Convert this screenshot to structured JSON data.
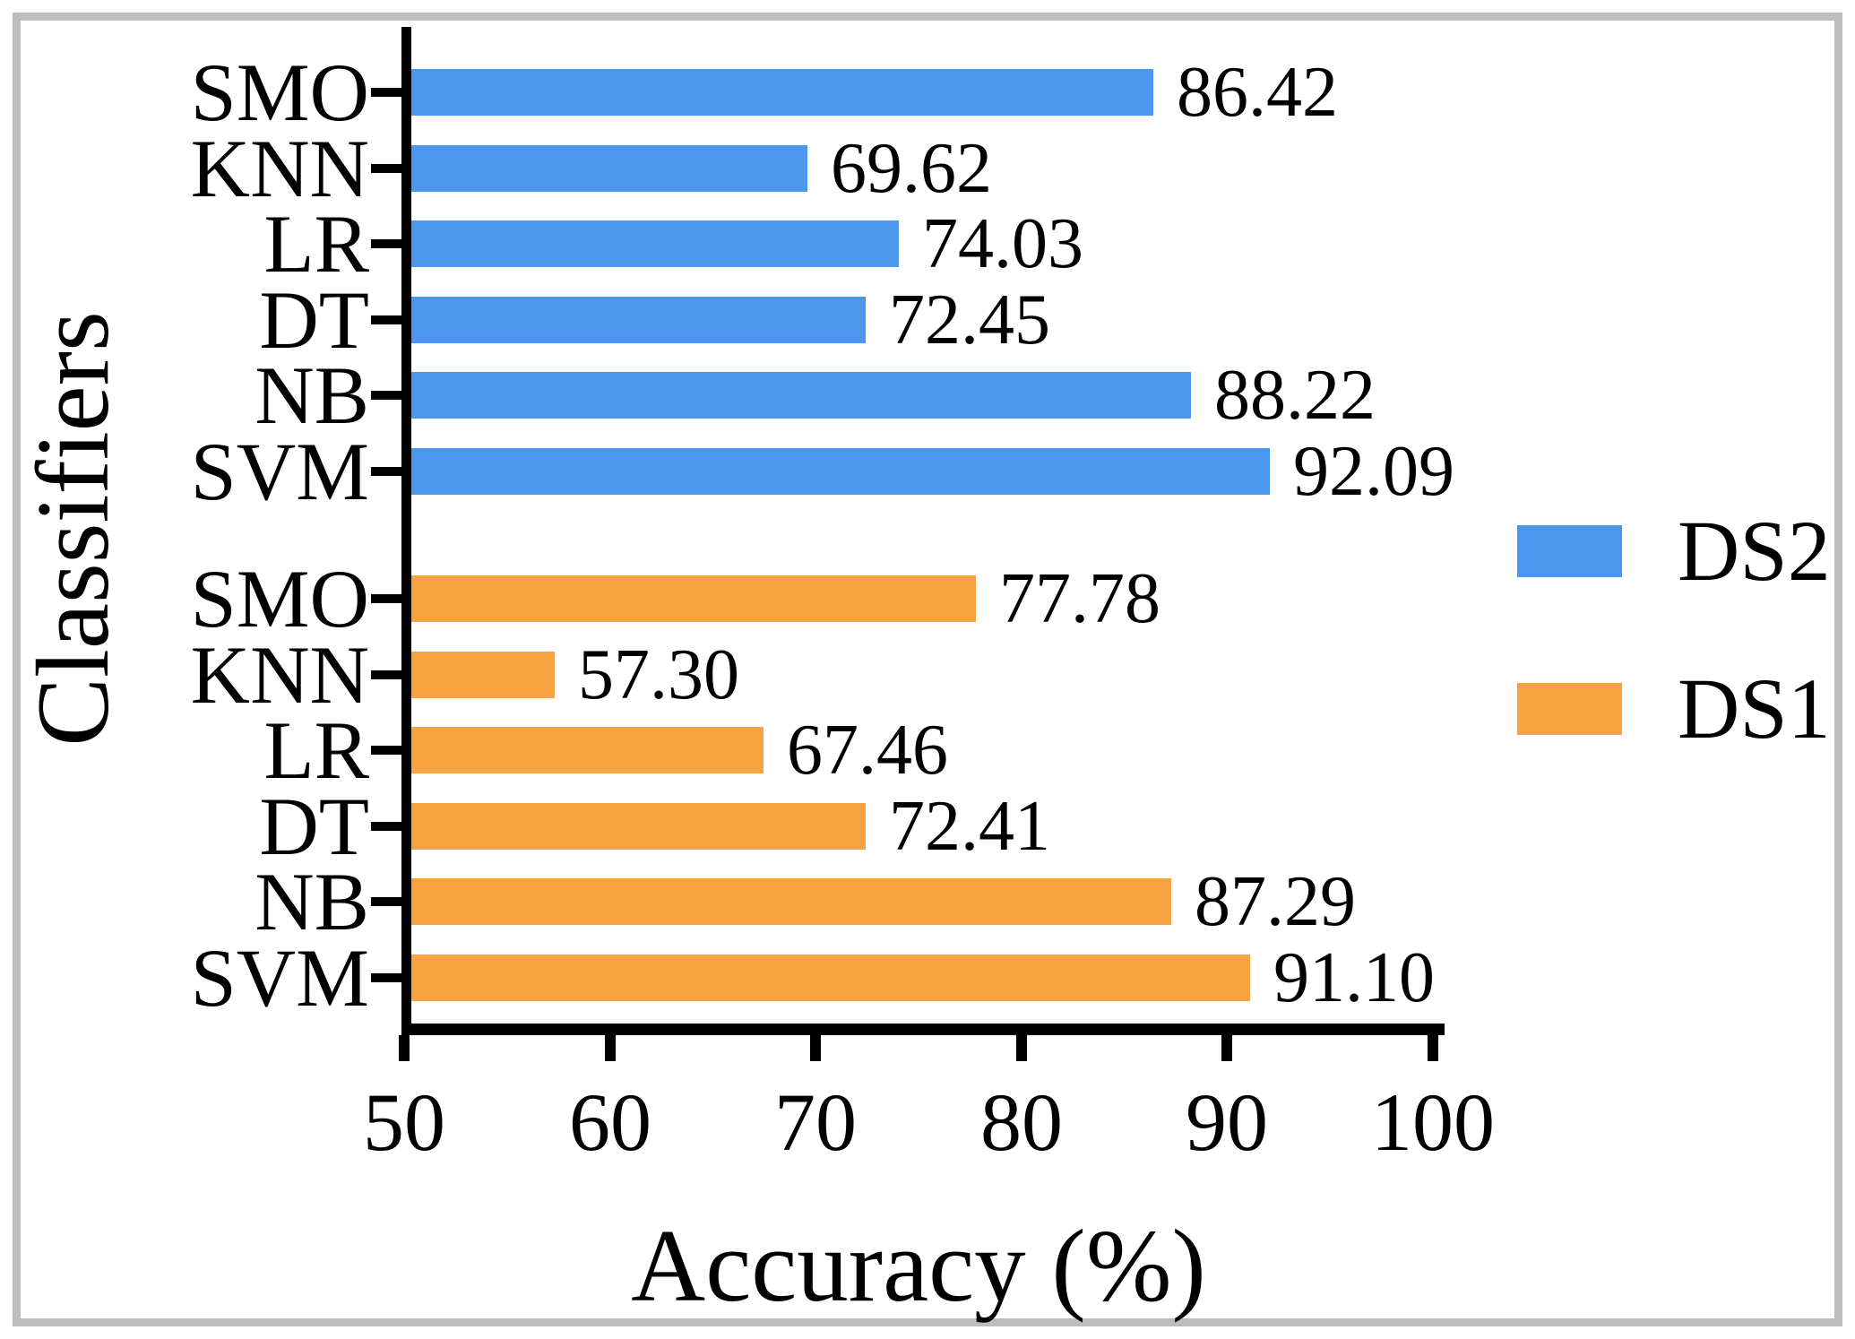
{
  "figure": {
    "background": "#ffffff",
    "frame_color": "#bdbdbd",
    "axis_color": "#000000",
    "text_color": "#000000"
  },
  "chart_data": {
    "type": "bar",
    "orientation": "horizontal",
    "title": "",
    "xlabel": "Accuracy (%)",
    "ylabel": "Classifiers",
    "xlim": [
      50,
      100
    ],
    "x_ticks": [
      "50",
      "60",
      "70",
      "80",
      "90",
      "100"
    ],
    "grid": false,
    "legend_position": "right-center",
    "categories": [
      "SMO",
      "KNN",
      "LR",
      "DT",
      "NB",
      "SVM"
    ],
    "series": [
      {
        "name": "DS2",
        "color": "#4b97ed",
        "values": [
          86.42,
          69.62,
          74.03,
          72.45,
          88.22,
          92.09
        ],
        "labels": [
          "86.42",
          "69.62",
          "74.03",
          "72.45",
          "88.22",
          "92.09"
        ]
      },
      {
        "name": "DS1",
        "color": "#f9a242",
        "values": [
          77.78,
          57.3,
          67.46,
          72.41,
          87.29,
          91.1
        ],
        "labels": [
          "77.78",
          "57.30",
          "67.46",
          "72.41",
          "87.29",
          "91.10"
        ]
      }
    ],
    "legend": [
      {
        "label": "DS2",
        "color": "#4b97ed"
      },
      {
        "label": "DS1",
        "color": "#f9a242"
      }
    ]
  }
}
